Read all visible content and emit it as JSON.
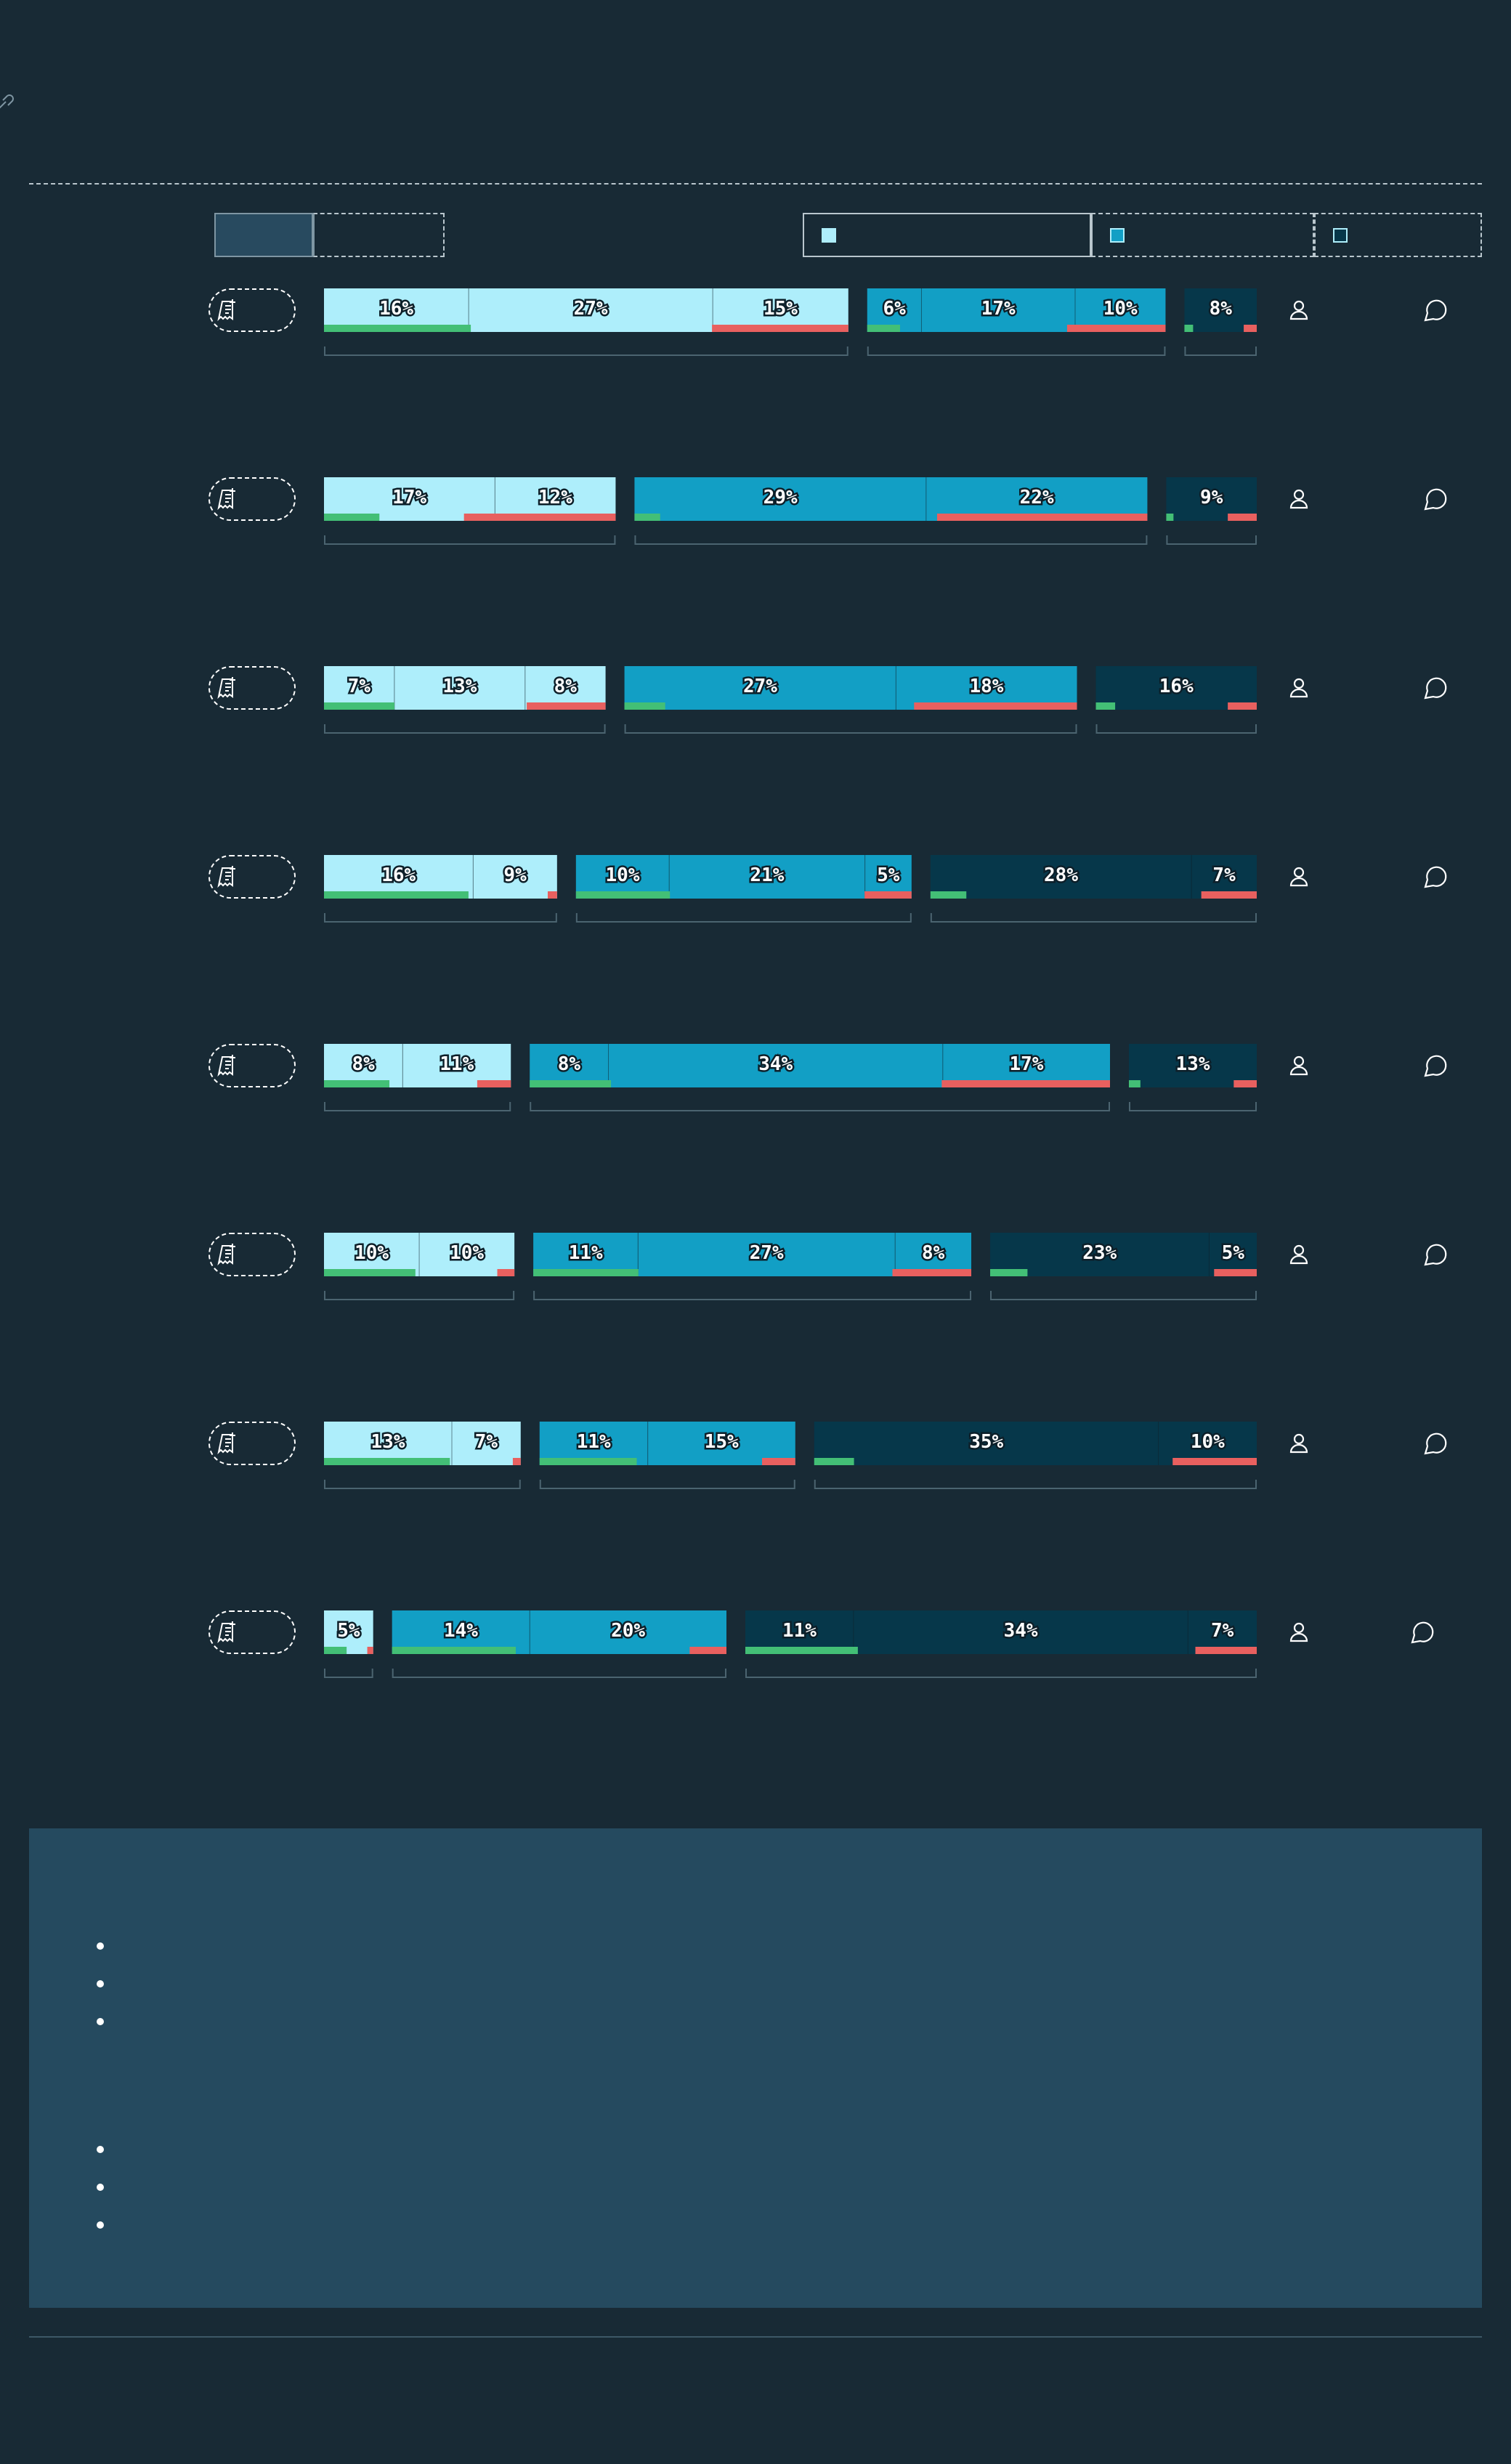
{
  "colors": {
    "page_bg": "#182a35",
    "segment_a": "#aeeefb",
    "segment_b": "#129fc5",
    "segment_c": "#06374a",
    "positive_marker": "#43bf76",
    "negative_marker": "#e8605f",
    "notes_bg": "#254a5f"
  },
  "icons": {
    "header": "link-icon",
    "row_label": "receipt-icon",
    "person": "person-icon",
    "comment": "comment-bubble-icon"
  },
  "notes": {
    "bullet_groups": [
      3,
      3
    ]
  },
  "chart_data": {
    "type": "bar",
    "orientation": "horizontal-stacked",
    "title": "",
    "xlabel": "",
    "ylabel": "",
    "segment_groups": [
      "a",
      "b",
      "c"
    ],
    "rows": [
      {
        "groups": [
          {
            "values": [
              16,
              27,
              15
            ],
            "pos": 28,
            "neg": 26
          },
          {
            "values": [
              6,
              17,
              10
            ],
            "pos": 11,
            "neg": 33
          },
          {
            "values": [
              8
            ],
            "pos": 12,
            "neg": 18
          }
        ]
      },
      {
        "groups": [
          {
            "values": [
              17,
              12
            ],
            "pos": 19,
            "neg": 52
          },
          {
            "values": [
              29,
              22
            ],
            "pos": 5,
            "neg": 41
          },
          {
            "values": [
              9
            ],
            "pos": 8,
            "neg": 32
          }
        ]
      },
      {
        "groups": [
          {
            "values": [
              7,
              13,
              8
            ],
            "pos": 25,
            "neg": 28
          },
          {
            "values": [
              27,
              18
            ],
            "pos": 9,
            "neg": 36
          },
          {
            "values": [
              16
            ],
            "pos": 12,
            "neg": 18
          }
        ]
      },
      {
        "groups": [
          {
            "values": [
              16,
              9
            ],
            "pos": 62,
            "neg": 4
          },
          {
            "values": [
              10,
              21,
              5
            ],
            "pos": 28,
            "neg": 14
          },
          {
            "values": [
              28,
              7
            ],
            "pos": 11,
            "neg": 17
          }
        ]
      },
      {
        "groups": [
          {
            "values": [
              8,
              11
            ],
            "pos": 35,
            "neg": 18
          },
          {
            "values": [
              8,
              34,
              17
            ],
            "pos": 14,
            "neg": 29
          },
          {
            "values": [
              13
            ],
            "pos": 9,
            "neg": 18
          }
        ]
      },
      {
        "groups": [
          {
            "values": [
              10,
              10
            ],
            "pos": 48,
            "neg": 9
          },
          {
            "values": [
              11,
              27,
              8
            ],
            "pos": 24,
            "neg": 18
          },
          {
            "values": [
              23,
              5
            ],
            "pos": 14,
            "neg": 16
          }
        ]
      },
      {
        "groups": [
          {
            "values": [
              13,
              7
            ],
            "pos": 64,
            "neg": 4
          },
          {
            "values": [
              11,
              15
            ],
            "pos": 38,
            "neg": 13
          },
          {
            "values": [
              35,
              10
            ],
            "pos": 9,
            "neg": 19
          }
        ]
      },
      {
        "groups": [
          {
            "values": [
              5
            ],
            "pos": 46,
            "neg": 12
          },
          {
            "values": [
              14,
              20
            ],
            "pos": 37,
            "neg": 11
          },
          {
            "values": [
              11,
              34,
              7
            ],
            "pos": 22,
            "neg": 12
          }
        ]
      }
    ],
    "legend": {
      "placement": "top-right",
      "entries": [
        "",
        "",
        ""
      ]
    },
    "grid": false,
    "xlim": [
      0,
      100
    ]
  }
}
